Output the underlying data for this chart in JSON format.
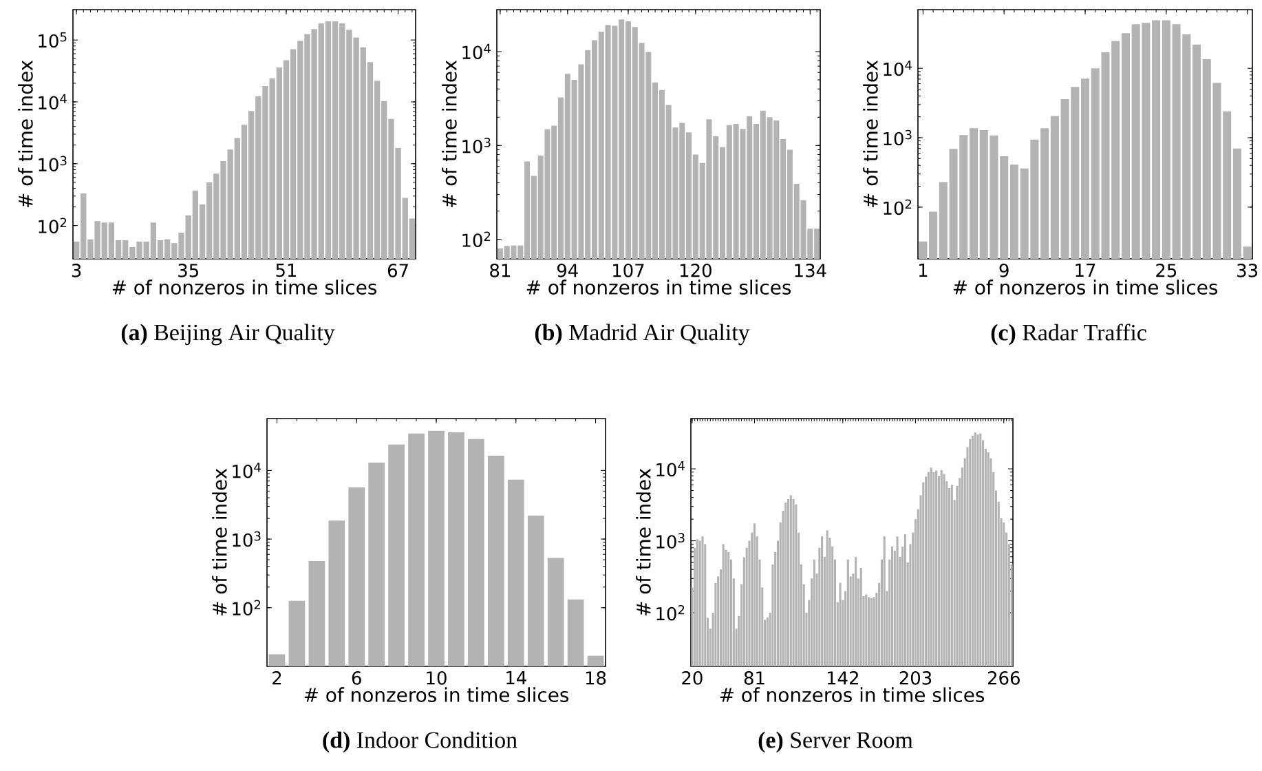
{
  "chart_data": [
    {
      "type": "bar",
      "title": "**(a)** Beijing Air Quality",
      "xlabel": "# of nonzeros in time slices",
      "ylabel": "# of time index",
      "color": "#b3b3b3",
      "log": true,
      "ylim": [
        29,
        310000
      ],
      "yticks": [
        {
          "value": 100,
          "label": "10$^{2}$"
        },
        {
          "value": 1000,
          "label": "10$^{3}$"
        },
        {
          "value": 10000,
          "label": "10$^{4}$"
        },
        {
          "value": 100000,
          "label": "10$^{5}$"
        }
      ],
      "categories": [
        "3",
        null,
        null,
        null,
        null,
        null,
        null,
        null,
        null,
        null,
        null,
        null,
        null,
        null,
        null,
        null,
        "35",
        null,
        null,
        null,
        null,
        null,
        null,
        null,
        null,
        null,
        null,
        null,
        null,
        null,
        "51",
        null,
        null,
        null,
        null,
        null,
        null,
        null,
        null,
        null,
        null,
        null,
        null,
        null,
        null,
        null,
        "67",
        null,
        null
      ],
      "values": [
        55,
        330,
        60,
        118,
        112,
        112,
        58,
        58,
        45,
        55,
        55,
        112,
        58,
        60,
        52,
        77,
        146,
        370,
        220,
        500,
        690,
        1100,
        1700,
        2600,
        4250,
        7100,
        12300,
        18000,
        24000,
        36000,
        47000,
        71000,
        97000,
        125000,
        150000,
        185000,
        200000,
        200000,
        185000,
        146000,
        110000,
        76000,
        44000,
        22000,
        10300,
        5300,
        1800,
        280,
        130
      ]
    },
    {
      "type": "bar",
      "title": "**(b)** Madrid Air Quality",
      "xlabel": "# of nonzeros in time slices",
      "ylabel": "# of time index",
      "color": "#b3b3b3",
      "log": true,
      "ylim": [
        62,
        28000
      ],
      "yticks": [
        {
          "value": 100,
          "label": "10$^{2}$"
        },
        {
          "value": 1000,
          "label": "10$^{3}$"
        },
        {
          "value": 10000,
          "label": "10$^{4}$"
        }
      ],
      "categories": [
        "81",
        null,
        null,
        null,
        null,
        null,
        null,
        null,
        null,
        null,
        "94",
        null,
        null,
        null,
        null,
        null,
        null,
        null,
        null,
        "107",
        null,
        null,
        null,
        null,
        null,
        null,
        null,
        null,
        null,
        "120",
        null,
        null,
        null,
        null,
        null,
        null,
        null,
        null,
        null,
        null,
        null,
        null,
        null,
        null,
        null,
        null,
        "134",
        null
      ],
      "values": [
        80,
        85,
        86,
        86,
        675,
        475,
        780,
        1490,
        1630,
        3250,
        5800,
        5000,
        7300,
        10400,
        13200,
        16300,
        19200,
        18800,
        22000,
        21000,
        18300,
        12400,
        9900,
        4700,
        3900,
        2700,
        1550,
        1740,
        1380,
        800,
        650,
        1900,
        1250,
        960,
        1650,
        1700,
        1500,
        2050,
        1700,
        2350,
        2000,
        1850,
        1170,
        900,
        390,
        260,
        130,
        130
      ]
    },
    {
      "type": "bar",
      "title": "**(c)** Radar Traffic",
      "xlabel": "# of nonzeros in time slices",
      "ylabel": "# of time index",
      "color": "#b3b3b3",
      "log": true,
      "ylim": [
        18,
        70000
      ],
      "yticks": [
        {
          "value": 100,
          "label": "10$^{2}$"
        },
        {
          "value": 1000,
          "label": "10$^{3}$"
        },
        {
          "value": 10000,
          "label": "10$^{4}$"
        }
      ],
      "categories": [
        "1",
        null,
        null,
        null,
        null,
        null,
        null,
        null,
        "9",
        null,
        null,
        null,
        null,
        null,
        null,
        null,
        "17",
        null,
        null,
        null,
        null,
        null,
        null,
        null,
        "25",
        null,
        null,
        null,
        null,
        null,
        null,
        null,
        "33"
      ],
      "values": [
        32,
        86,
        230,
        690,
        1090,
        1370,
        1290,
        1080,
        540,
        410,
        360,
        940,
        1370,
        2050,
        3600,
        5400,
        7100,
        10000,
        17000,
        24700,
        32000,
        43000,
        45000,
        49000,
        49000,
        43000,
        31000,
        22000,
        13500,
        6200,
        2400,
        700,
        27
      ]
    },
    {
      "type": "bar",
      "title": "**(d)** Indoor Condition",
      "xlabel": "# of nonzeros in time slices",
      "ylabel": "# of time index",
      "color": "#b3b3b3",
      "log": true,
      "ylim": [
        14,
        57000
      ],
      "yticks": [
        {
          "value": 100,
          "label": "10$^{2}$"
        },
        {
          "value": 1000,
          "label": "10$^{3}$"
        },
        {
          "value": 10000,
          "label": "10$^{4}$"
        }
      ],
      "categories": [
        "2",
        null,
        null,
        null,
        "6",
        null,
        null,
        null,
        "10",
        null,
        null,
        null,
        "14",
        null,
        null,
        null,
        "18"
      ],
      "values": [
        21,
        126,
        480,
        1860,
        5650,
        13000,
        23800,
        34500,
        37800,
        36000,
        28600,
        16400,
        7350,
        2200,
        530,
        132,
        20
      ]
    },
    {
      "type": "bar",
      "title": "**(e)** Server Room",
      "xlabel": "# of nonzeros in time slices",
      "ylabel": "# of time index",
      "color": "#b3b3b3",
      "log": true,
      "ylim": [
        18,
        50000
      ],
      "yticks": [
        {
          "value": 100,
          "label": "10$^{2}$"
        },
        {
          "value": 1000,
          "label": "10$^{3}$"
        },
        {
          "value": 10000,
          "label": "10$^{4}$"
        }
      ],
      "categories": [
        "20",
        null,
        null,
        null,
        null,
        null,
        null,
        null,
        null,
        null,
        null,
        null,
        null,
        null,
        null,
        null,
        null,
        null,
        null,
        null,
        null,
        null,
        null,
        null,
        "81",
        null,
        null,
        null,
        null,
        null,
        null,
        null,
        null,
        null,
        null,
        null,
        null,
        null,
        null,
        null,
        null,
        null,
        null,
        null,
        null,
        null,
        null,
        null,
        null,
        null,
        null,
        null,
        null,
        null,
        null,
        null,
        null,
        null,
        "142",
        null,
        null,
        null,
        null,
        null,
        null,
        null,
        null,
        null,
        null,
        null,
        null,
        null,
        null,
        null,
        null,
        null,
        null,
        null,
        null,
        null,
        null,
        null,
        null,
        null,
        null,
        null,
        "203",
        null,
        null,
        null,
        null,
        null,
        null,
        null,
        null,
        null,
        null,
        null,
        null,
        null,
        null,
        null,
        null,
        null,
        null,
        null,
        null,
        null,
        null,
        null,
        null,
        null,
        null,
        null,
        null,
        null,
        null,
        null,
        null,
        null,
        "266",
        null,
        null,
        null
      ],
      "values": [
        225,
        800,
        1050,
        1000,
        1150,
        900,
        85,
        60,
        100,
        260,
        320,
        400,
        900,
        750,
        700,
        550,
        300,
        60,
        90,
        250,
        590,
        800,
        1000,
        1300,
        1750,
        1150,
        550,
        225,
        80,
        86,
        100,
        470,
        700,
        1000,
        1800,
        2600,
        3400,
        3800,
        4300,
        3800,
        3200,
        1300,
        470,
        250,
        100,
        150,
        300,
        550,
        350,
        800,
        1150,
        600,
        1400,
        1100,
        830,
        550,
        140,
        260,
        150,
        200,
        550,
        320,
        350,
        600,
        300,
        420,
        170,
        180,
        165,
        160,
        165,
        190,
        260,
        550,
        1150,
        200,
        550,
        830,
        730,
        1150,
        600,
        830,
        1230,
        500,
        900,
        1300,
        2000,
        2750,
        4300,
        6500,
        7800,
        9000,
        10400,
        9000,
        9500,
        8000,
        9600,
        8500,
        6700,
        5400,
        6000,
        3700,
        5800,
        7500,
        10400,
        14000,
        20000,
        26000,
        29000,
        32000,
        30000,
        31000,
        25000,
        19000,
        17000,
        14000,
        9000,
        5000,
        3500,
        2050,
        1800,
        1300,
        900,
        470
      ]
    }
  ]
}
